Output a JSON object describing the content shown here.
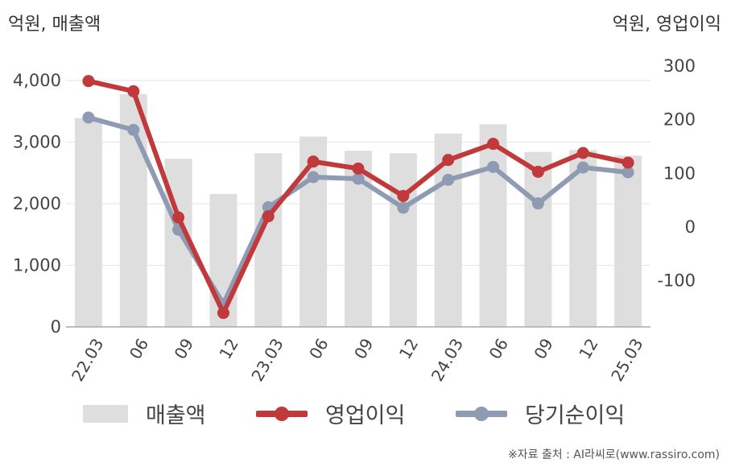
{
  "chart_data": {
    "type": "bar",
    "categories": [
      "22.03",
      "06",
      "09",
      "12",
      "23.03",
      "06",
      "09",
      "12",
      "24.03",
      "06",
      "09",
      "12",
      "25.03"
    ],
    "left_axis": {
      "unit_label": "억원, 매출액",
      "ticks": [
        "0",
        "1,000",
        "2,000",
        "3,000",
        "4,000"
      ],
      "tick_values": [
        0,
        1000,
        2000,
        3000,
        4000
      ],
      "ylim": [
        0,
        4000
      ]
    },
    "right_axis": {
      "unit_label": "억원, 영업이익",
      "ticks": [
        "-100",
        "0",
        "100",
        "200",
        "300"
      ],
      "tick_values": [
        -100,
        0,
        100,
        200,
        300
      ],
      "ylim": [
        -186,
        300
      ]
    },
    "series": [
      {
        "name": "매출액",
        "type": "bar",
        "axis": "left",
        "color": "#dedede",
        "values": [
          3390,
          3780,
          2730,
          2160,
          2820,
          3090,
          2860,
          2820,
          3140,
          3290,
          2840,
          2870,
          2780
        ]
      },
      {
        "name": "영업이익",
        "type": "line",
        "axis": "right",
        "color": "#c0393b",
        "values": [
          272,
          253,
          18,
          -160,
          20,
          122,
          109,
          58,
          125,
          155,
          103,
          138,
          120
        ]
      },
      {
        "name": "당기순이익",
        "type": "line",
        "axis": "right",
        "color": "#8f9bb3",
        "values": [
          204,
          181,
          -5,
          -143,
          37,
          93,
          90,
          36,
          88,
          112,
          44,
          111,
          102
        ]
      }
    ],
    "legend_position": "bottom",
    "grid": true
  },
  "legend": [
    {
      "label": "매출액"
    },
    {
      "label": "영업이익"
    },
    {
      "label": "당기순이익"
    }
  ],
  "source": "※자료 출처 : AI라씨로(www.rassiro.com)"
}
